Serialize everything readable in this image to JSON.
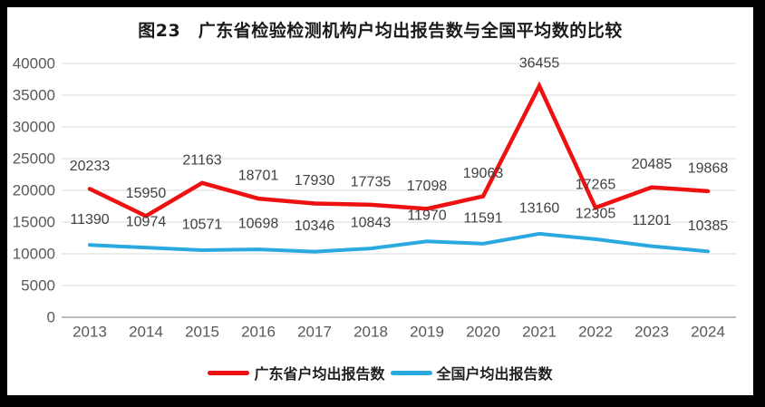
{
  "chart_data": {
    "type": "line",
    "title": "图23　广东省检验检测机构户均出报告数与全国平均数的比较",
    "categories": [
      "2013",
      "2014",
      "2015",
      "2016",
      "2017",
      "2018",
      "2019",
      "2020",
      "2021",
      "2022",
      "2023",
      "2024"
    ],
    "series": [
      {
        "name": "广东省户均出报告数",
        "color": "#ee1111",
        "values": [
          20233,
          15950,
          21163,
          18701,
          17930,
          17735,
          17098,
          19063,
          36455,
          17265,
          20485,
          19868
        ]
      },
      {
        "name": "全国户均出报告数",
        "color": "#29a9e0",
        "values": [
          11390,
          10974,
          10571,
          10698,
          10346,
          10843,
          11970,
          11591,
          13160,
          12305,
          11201,
          10385
        ]
      }
    ],
    "xlabel": "",
    "ylabel": "",
    "ylim": [
      0,
      40000
    ],
    "ytick_step": 5000,
    "ytick_labels": [
      "0",
      "5000",
      "10000",
      "15000",
      "20000",
      "25000",
      "30000",
      "35000",
      "40000"
    ],
    "grid": true,
    "data_labels": true,
    "legend_position": "bottom"
  },
  "style": {
    "grid_color": "#d9d9d9",
    "axis_color": "#a6a6a6",
    "tick_color": "#595959",
    "label_color": "#404040",
    "background": "#ffffff",
    "frame_color": "#000000"
  }
}
